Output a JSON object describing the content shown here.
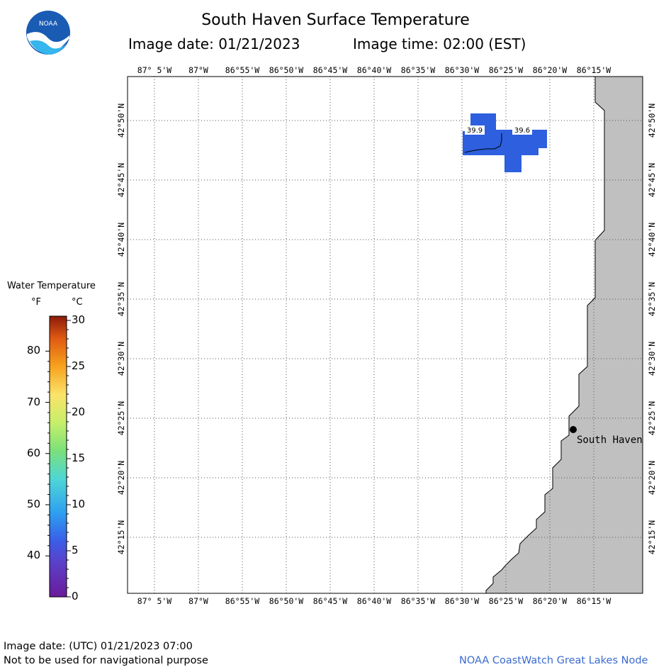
{
  "header": {
    "title": "South Haven Surface Temperature",
    "image_date": "Image date: 01/21/2023",
    "image_time": "Image time: 02:00 (EST)"
  },
  "logo": {
    "text": "NOAA"
  },
  "map": {
    "lon_labels": [
      "87° 5'W",
      "87°W",
      "86°55'W",
      "86°50'W",
      "86°45'W",
      "86°40'W",
      "86°35'W",
      "86°30'W",
      "86°25'W",
      "86°20'W",
      "86°15'W"
    ],
    "lat_labels": [
      "42°50'N",
      "42°45'N",
      "42°40'N",
      "42°35'N",
      "42°30'N",
      "42°25'N",
      "42°20'N",
      "42°15'N"
    ],
    "city": "South Haven",
    "temp_labels": [
      "39.9",
      "39.6"
    ],
    "water_color": "#2d5fdf",
    "land_color": "#c0c0c0"
  },
  "legend": {
    "title": "Water Temperature",
    "unit_f": "°F",
    "unit_c": "°C",
    "f_ticks": [
      "80",
      "70",
      "60",
      "50",
      "40"
    ],
    "c_ticks": [
      "30",
      "25",
      "20",
      "15",
      "10",
      "5",
      "0"
    ]
  },
  "footer": {
    "utc_date": "Image date: (UTC) 01/21/2023  07:00",
    "disclaimer": "Not to be used for navigational purpose",
    "credit": "NOAA CoastWatch Great Lakes Node"
  }
}
